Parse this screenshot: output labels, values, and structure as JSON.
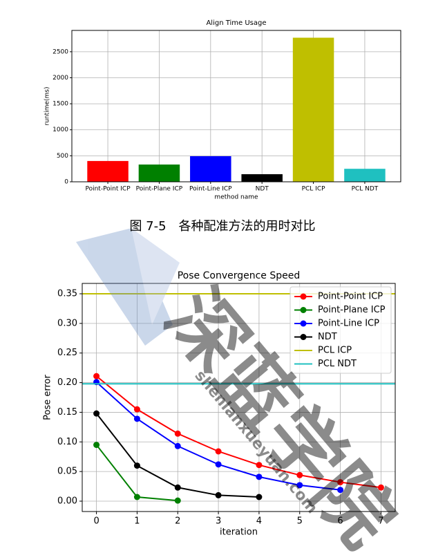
{
  "chart_data": [
    {
      "type": "bar",
      "title": "Align Time Usage",
      "xlabel": "method name",
      "ylabel": "runtime(ms)",
      "categories": [
        "Point-Point ICP",
        "Point-Plane ICP",
        "Point-Line ICP",
        "NDT",
        "PCL ICP",
        "PCL NDT"
      ],
      "values": [
        400,
        332,
        492,
        146,
        2770,
        250
      ],
      "colors": [
        "#ff0000",
        "#008000",
        "#0000ff",
        "#000000",
        "#bfbf00",
        "#1fc0c0"
      ],
      "ylim": [
        0,
        2910
      ],
      "yticks": [
        0,
        500,
        1000,
        1500,
        2000,
        2500
      ],
      "grid": true
    },
    {
      "type": "line",
      "title": "Pose Convergence Speed",
      "xlabel": "iteration",
      "ylabel": "Pose error",
      "series": [
        {
          "name": "Point-Point ICP",
          "color": "#ff0000",
          "x": [
            0,
            1,
            2,
            3,
            4,
            5,
            6,
            7
          ],
          "values": [
            0.211,
            0.155,
            0.114,
            0.084,
            0.061,
            0.044,
            0.032,
            0.023
          ]
        },
        {
          "name": "Point-Plane ICP",
          "color": "#008000",
          "x": [
            0,
            1,
            2
          ],
          "values": [
            0.095,
            0.007,
            0.001
          ]
        },
        {
          "name": "Point-Line ICP",
          "color": "#0000ff",
          "x": [
            0,
            1,
            2,
            3,
            4,
            5,
            6
          ],
          "values": [
            0.201,
            0.139,
            0.093,
            0.062,
            0.041,
            0.027,
            0.019
          ]
        },
        {
          "name": "NDT",
          "color": "#000000",
          "x": [
            0,
            1,
            2,
            3,
            4
          ],
          "values": [
            0.148,
            0.06,
            0.023,
            0.01,
            0.007
          ]
        },
        {
          "name": "PCL ICP",
          "color": "#bfbf00",
          "hline": 0.35
        },
        {
          "name": "PCL NDT",
          "color": "#1fc0c0",
          "hline": 0.198
        }
      ],
      "xlim": [
        -0.35,
        7.35
      ],
      "xticks": [
        0,
        1,
        2,
        3,
        4,
        5,
        6,
        7
      ],
      "ylim": [
        -0.0175,
        0.3675
      ],
      "yticks": [
        {
          "value": 0,
          "label": "0.00"
        },
        {
          "value": 0.05,
          "label": "0.05"
        },
        {
          "value": 0.1,
          "label": "0.10"
        },
        {
          "value": 0.15,
          "label": "0.15"
        },
        {
          "value": 0.2,
          "label": "0.20"
        },
        {
          "value": 0.25,
          "label": "0.25"
        },
        {
          "value": 0.3,
          "label": "0.30"
        },
        {
          "value": 0.35,
          "label": "0.35"
        }
      ],
      "grid": true,
      "legend": "upper right"
    }
  ],
  "caption": "图 7-5　各种配准方法的用时对比",
  "watermark": {
    "text": "深蓝学院",
    "url": "shenlanxueyuan.com"
  }
}
